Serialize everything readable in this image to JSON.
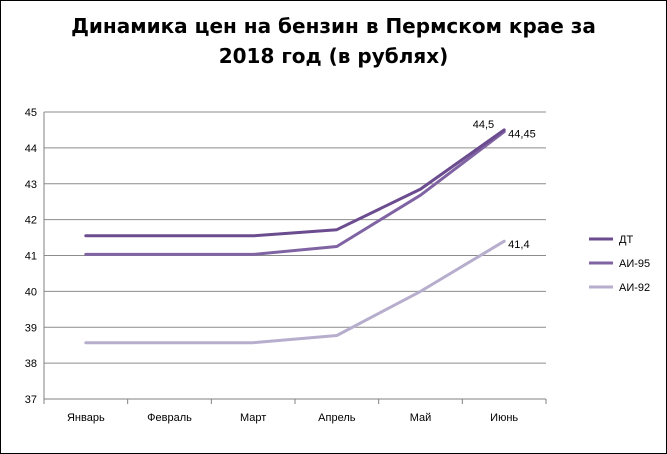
{
  "chart_data": {
    "type": "line",
    "title_lines": [
      "Динамика цен на бензин в Пермском крае за",
      "2018 год (в рублях)"
    ],
    "xlabel": "",
    "ylabel": "",
    "categories": [
      "Январь",
      "Февраль",
      "Март",
      "Апрель",
      "Май",
      "Июнь"
    ],
    "ylim": [
      37,
      45
    ],
    "yticks": [
      "37",
      "38",
      "39",
      "40",
      "41",
      "42",
      "43",
      "44",
      "45"
    ],
    "grid": "horizontal",
    "legend_position": "right",
    "series": [
      {
        "name": "ДТ",
        "color": "#6b4c8f",
        "values": [
          41.55,
          41.55,
          41.55,
          41.72,
          42.85,
          44.5
        ]
      },
      {
        "name": "АИ-95",
        "color": "#7f63a3",
        "values": [
          41.03,
          41.03,
          41.03,
          41.25,
          42.68,
          44.45
        ]
      },
      {
        "name": "АИ-92",
        "color": "#b7adcd",
        "values": [
          38.57,
          38.57,
          38.57,
          38.77,
          40.0,
          41.4
        ]
      }
    ],
    "data_labels": [
      {
        "series": 0,
        "index": 5,
        "text": "44,5"
      },
      {
        "series": 1,
        "index": 5,
        "text": "44,45"
      },
      {
        "series": 2,
        "index": 5,
        "text": "41,4"
      }
    ]
  }
}
